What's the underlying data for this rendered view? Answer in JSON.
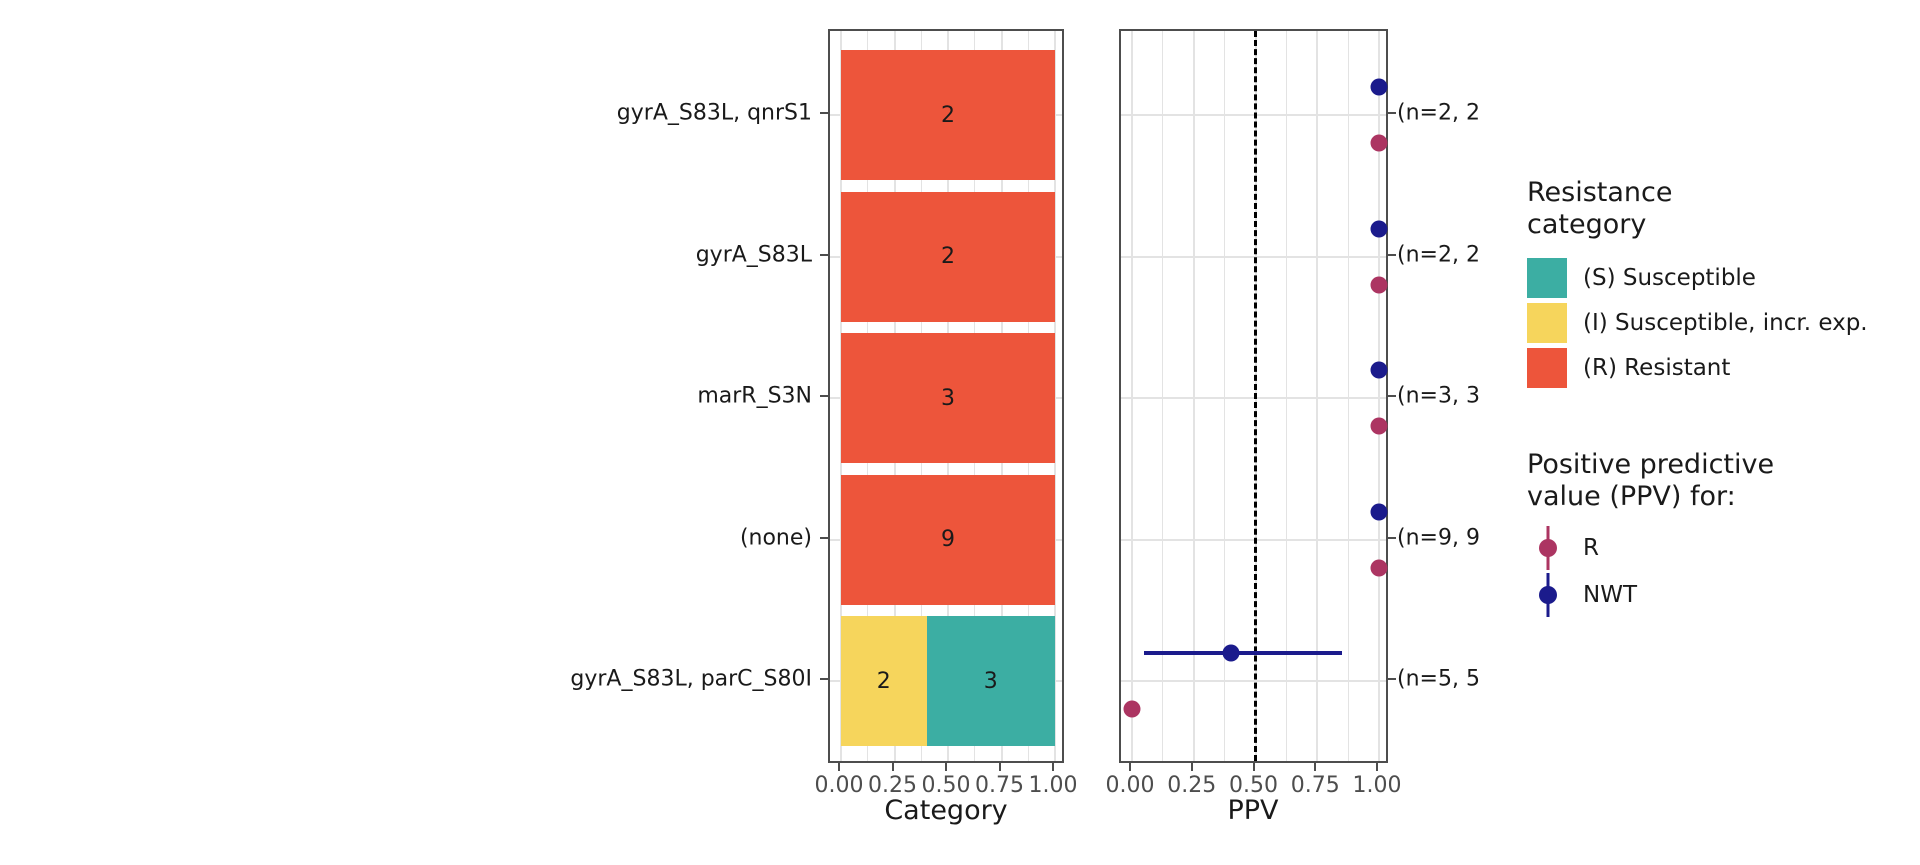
{
  "chart_data": {
    "type": [
      "stacked-bar",
      "scatter"
    ],
    "categories_axis": "genotype",
    "rows": [
      {
        "label": "gyrA_S83L, qnrS1",
        "bar_segments": [
          {
            "category": "R",
            "count": 2,
            "proportion": 1.0
          }
        ],
        "annotation": "(n=2, 2",
        "ppv_points": [
          {
            "series": "NWT",
            "value": 1.0,
            "ci": null
          },
          {
            "series": "R",
            "value": 1.0,
            "ci": null
          }
        ]
      },
      {
        "label": "gyrA_S83L",
        "bar_segments": [
          {
            "category": "R",
            "count": 2,
            "proportion": 1.0
          }
        ],
        "annotation": "(n=2, 2",
        "ppv_points": [
          {
            "series": "NWT",
            "value": 1.0,
            "ci": null
          },
          {
            "series": "R",
            "value": 1.0,
            "ci": null
          }
        ]
      },
      {
        "label": "marR_S3N",
        "bar_segments": [
          {
            "category": "R",
            "count": 3,
            "proportion": 1.0
          }
        ],
        "annotation": "(n=3, 3",
        "ppv_points": [
          {
            "series": "NWT",
            "value": 1.0,
            "ci": null
          },
          {
            "series": "R",
            "value": 1.0,
            "ci": null
          }
        ]
      },
      {
        "label": "(none)",
        "bar_segments": [
          {
            "category": "R",
            "count": 9,
            "proportion": 1.0
          }
        ],
        "annotation": "(n=9, 9",
        "ppv_points": [
          {
            "series": "NWT",
            "value": 1.0,
            "ci": null
          },
          {
            "series": "R",
            "value": 1.0,
            "ci": null
          }
        ]
      },
      {
        "label": "gyrA_S83L, parC_S80I",
        "bar_segments": [
          {
            "category": "I",
            "count": 2,
            "proportion": 0.4
          },
          {
            "category": "S",
            "count": 3,
            "proportion": 0.6
          }
        ],
        "annotation": "(n=5, 5",
        "ppv_points": [
          {
            "series": "NWT",
            "value": 0.4,
            "ci": [
              0.05,
              0.85
            ]
          },
          {
            "series": "R",
            "value": 0.0,
            "ci": null
          }
        ]
      }
    ],
    "axes": {
      "category": {
        "title": "Category",
        "tick_labels": [
          "0.00",
          "0.25",
          "0.50",
          "0.75",
          "1.00"
        ],
        "tick_values": [
          0,
          0.25,
          0.5,
          0.75,
          1
        ],
        "minor_values": [
          0.125,
          0.375,
          0.625,
          0.875
        ],
        "xlim": [
          0,
          1
        ]
      },
      "ppv": {
        "title": "PPV",
        "tick_labels": [
          "0.00",
          "0.25",
          "0.50",
          "0.75",
          "1.00"
        ],
        "tick_values": [
          0,
          0.25,
          0.5,
          0.75,
          1
        ],
        "minor_values": [
          0.125,
          0.375,
          0.625,
          0.875
        ],
        "xlim": [
          0,
          1
        ],
        "dashed_reference_value": 0.5
      }
    },
    "colors": {
      "S": "#3CAEA3",
      "I": "#F6D55C",
      "R": "#ED553B",
      "ppv_R": "#AC3562",
      "ppv_NWT": "#1B1B8C",
      "grid": "#E3E3E3",
      "panel_border": "#4D4D4D",
      "axis_text": "#4D4D4D",
      "reference_line": "#000000"
    }
  },
  "legends": {
    "resistance": {
      "title_line1": "Resistance",
      "title_line2": "category",
      "items": [
        {
          "label": "(S) Susceptible",
          "color": "#3CAEA3"
        },
        {
          "label": "(I) Susceptible, incr. exp.",
          "color": "#F6D55C"
        },
        {
          "label": "(R) Resistant",
          "color": "#ED553B"
        }
      ]
    },
    "ppv": {
      "title_line1": "Positive predictive",
      "title_line2": "value (PPV) for:",
      "items": [
        {
          "label": "R",
          "color": "#AC3562"
        },
        {
          "label": "NWT",
          "color": "#1B1B8C"
        }
      ]
    }
  }
}
